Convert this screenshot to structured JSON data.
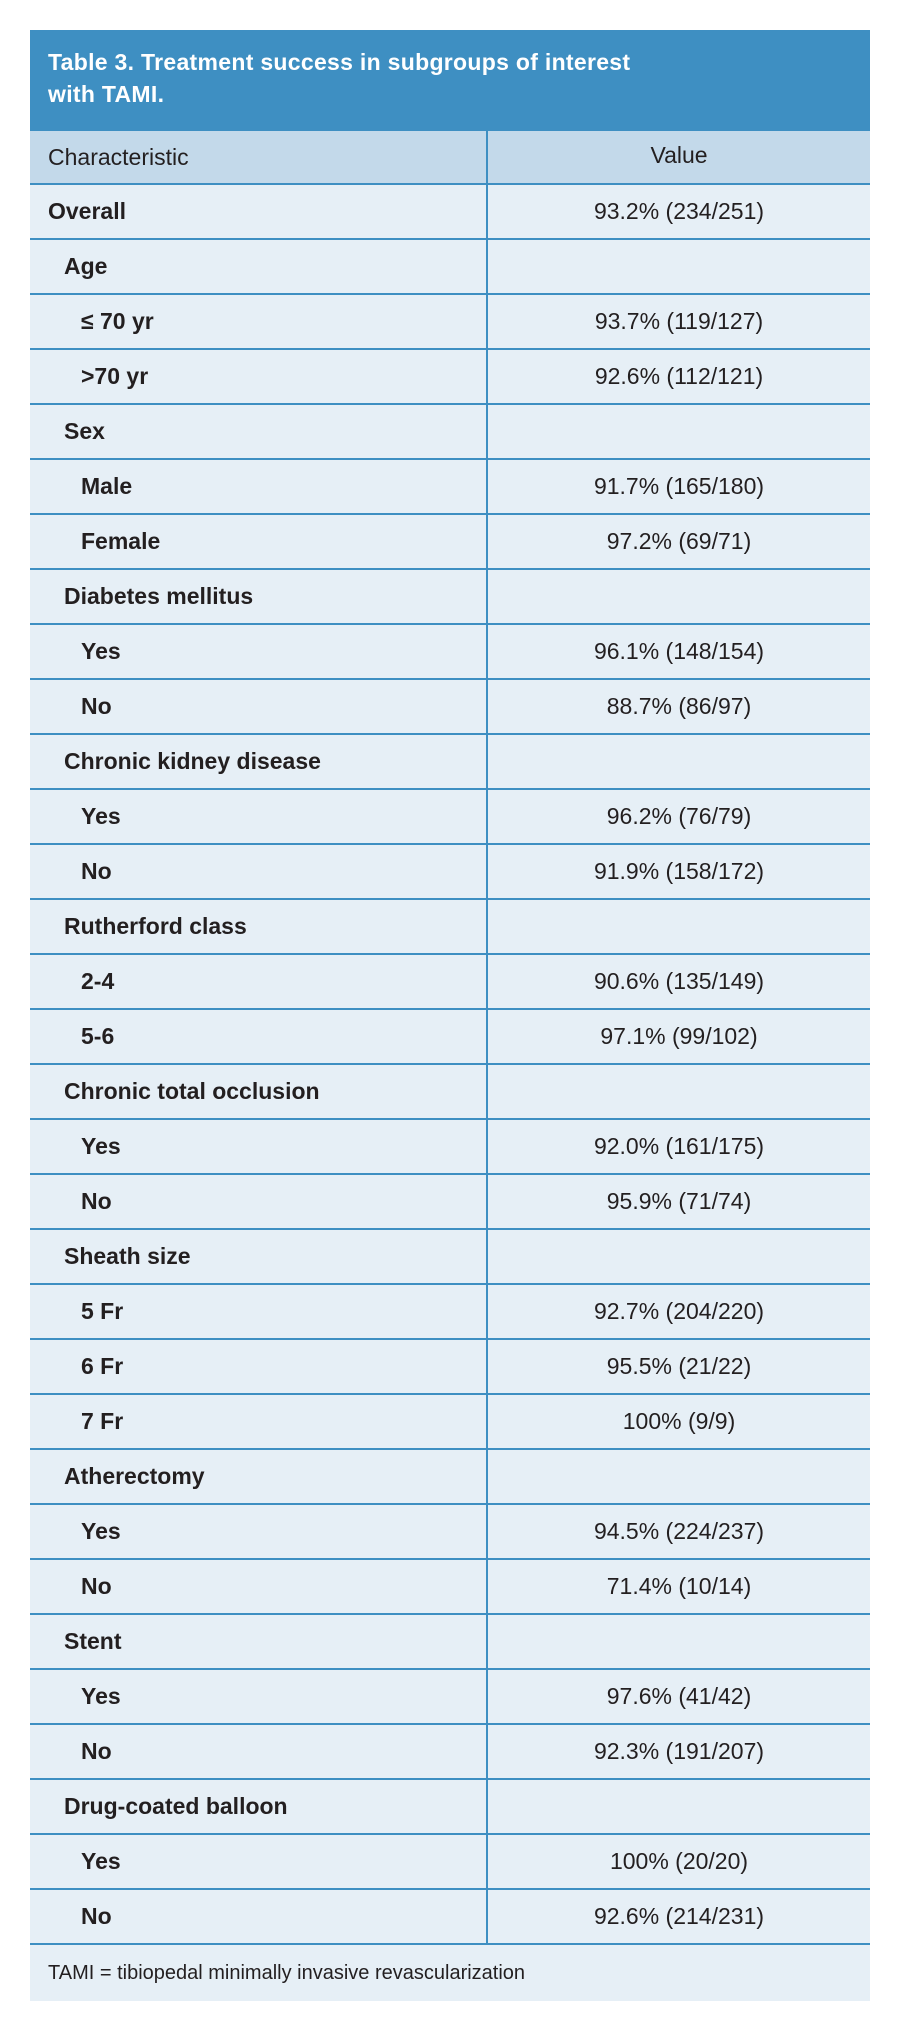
{
  "table": {
    "title_line1": "Table 3.  Treatment success in subgroups of interest",
    "title_line2": "with TAMI.",
    "header": {
      "characteristic": "Characteristic",
      "value": "Value"
    },
    "rows": [
      {
        "label": "Overall",
        "value": "93.2% (234/251)"
      },
      {
        "label": "Age",
        "value": ""
      },
      {
        "label": "≤ 70 yr",
        "value": "93.7% (119/127)"
      },
      {
        "label": ">70 yr",
        "value": "92.6% (112/121)"
      },
      {
        "label": "Sex",
        "value": ""
      },
      {
        "label": "Male",
        "value": "91.7% (165/180)"
      },
      {
        "label": "Female",
        "value": "97.2% (69/71)"
      },
      {
        "label": "Diabetes mellitus",
        "value": ""
      },
      {
        "label": "Yes",
        "value": "96.1% (148/154)"
      },
      {
        "label": "No",
        "value": "88.7% (86/97)"
      },
      {
        "label": "Chronic kidney disease",
        "value": ""
      },
      {
        "label": "Yes",
        "value": "96.2% (76/79)"
      },
      {
        "label": "No",
        "value": "91.9% (158/172)"
      },
      {
        "label": "Rutherford class",
        "value": ""
      },
      {
        "label": "2-4",
        "value": "90.6% (135/149)"
      },
      {
        "label": "5-6",
        "value": "97.1% (99/102)"
      },
      {
        "label": "Chronic total occlusion",
        "value": ""
      },
      {
        "label": "Yes",
        "value": "92.0% (161/175)"
      },
      {
        "label": "No",
        "value": "95.9% (71/74)"
      },
      {
        "label": "Sheath size",
        "value": ""
      },
      {
        "label": "5 Fr",
        "value": "92.7% (204/220)"
      },
      {
        "label": "6 Fr",
        "value": "95.5% (21/22)"
      },
      {
        "label": "7 Fr",
        "value": "100% (9/9)"
      },
      {
        "label": "Atherectomy",
        "value": ""
      },
      {
        "label": "Yes",
        "value": "94.5% (224/237)"
      },
      {
        "label": "No",
        "value": "71.4% (10/14)"
      },
      {
        "label": "Stent",
        "value": ""
      },
      {
        "label": "Yes",
        "value": "97.6% (41/42)"
      },
      {
        "label": "No",
        "value": "92.3% (191/207)"
      },
      {
        "label": "Drug-coated balloon",
        "value": ""
      },
      {
        "label": "Yes",
        "value": "100% (20/20)"
      },
      {
        "label": "No",
        "value": "92.6% (214/231)"
      }
    ],
    "footnote": "TAMI = tibiopedal minimally invasive revascularization"
  },
  "colors": {
    "title_bg": "#3e8fc2",
    "header_bg": "#c3d9ea",
    "body_bg": "#e6eff6",
    "rule": "#3e8fc2"
  }
}
